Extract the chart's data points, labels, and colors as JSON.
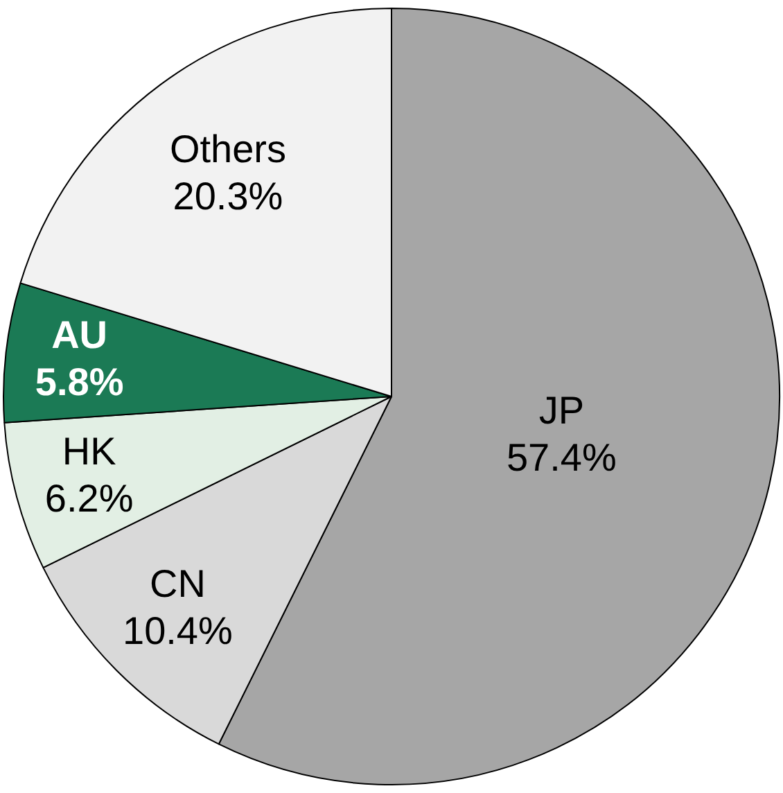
{
  "chart_data": {
    "type": "pie",
    "categories": [
      "JP",
      "CN",
      "HK",
      "AU",
      "Others"
    ],
    "values": [
      57.4,
      10.4,
      6.2,
      5.8,
      20.3
    ],
    "value_labels": [
      "57.4%",
      "10.4%",
      "6.2%",
      "5.8%",
      "20.3%"
    ],
    "colors": [
      "#a6a6a6",
      "#d9d9d9",
      "#e2efe4",
      "#1b7a55",
      "#f2f2f2"
    ],
    "legend": false
  }
}
